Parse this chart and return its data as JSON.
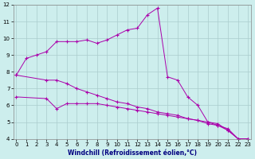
{
  "xlabel": "Windchill (Refroidissement éolien,°C)",
  "bg_color": "#cdeeed",
  "line_color": "#aa00aa",
  "grid_color": "#aacccc",
  "series1_x": [
    0,
    1,
    2,
    3,
    4,
    5,
    6,
    7,
    8,
    9,
    10,
    11,
    12,
    13,
    14,
    15,
    16,
    17,
    18,
    19,
    20,
    21,
    22,
    23
  ],
  "series1_y": [
    7.8,
    8.8,
    9.0,
    9.2,
    9.8,
    9.8,
    9.8,
    9.9,
    9.7,
    9.9,
    10.2,
    10.5,
    10.6,
    11.4,
    11.8,
    7.7,
    7.5,
    6.5,
    6.0,
    5.0,
    4.8,
    4.5,
    4.0,
    4.0
  ],
  "series2_x": [
    0,
    3,
    4,
    5,
    6,
    7,
    8,
    9,
    10,
    11,
    12,
    13,
    14,
    15,
    16,
    17,
    18,
    19,
    20,
    21,
    22,
    23
  ],
  "series2_y": [
    7.8,
    7.5,
    7.5,
    7.3,
    7.0,
    6.8,
    6.6,
    6.4,
    6.2,
    6.1,
    5.9,
    5.8,
    5.6,
    5.5,
    5.4,
    5.2,
    5.1,
    4.9,
    4.8,
    4.6,
    4.0,
    4.0
  ],
  "series3_x": [
    0,
    3,
    4,
    5,
    6,
    7,
    8,
    9,
    10,
    11,
    12,
    13,
    14,
    15,
    16,
    17,
    18,
    19,
    20,
    21,
    22,
    23
  ],
  "series3_y": [
    6.5,
    6.4,
    5.8,
    6.1,
    6.1,
    6.1,
    6.1,
    6.0,
    5.9,
    5.8,
    5.7,
    5.6,
    5.5,
    5.4,
    5.3,
    5.2,
    5.1,
    5.0,
    4.9,
    4.5,
    4.0,
    4.0
  ],
  "series4_x": [
    3,
    4
  ],
  "series4_y": [
    6.5,
    5.8
  ],
  "ylim_min": 4,
  "ylim_max": 12,
  "xlim_min": 0,
  "xlim_max": 23,
  "yticks": [
    4,
    5,
    6,
    7,
    8,
    9,
    10,
    11,
    12
  ],
  "xticks": [
    0,
    1,
    2,
    3,
    4,
    5,
    6,
    7,
    8,
    9,
    10,
    11,
    12,
    13,
    14,
    15,
    16,
    17,
    18,
    19,
    20,
    21,
    22,
    23
  ],
  "tick_fontsize": 5,
  "xlabel_fontsize": 5.5,
  "xlabel_color": "#000080"
}
